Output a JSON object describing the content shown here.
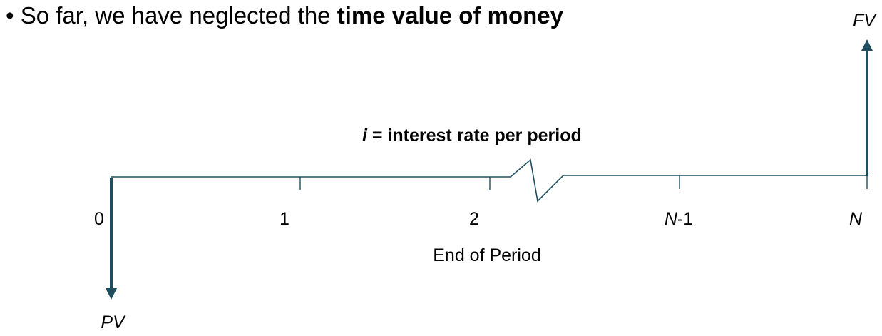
{
  "bullet": {
    "marker": "•",
    "text_plain": "So far, we have neglected the ",
    "text_bold": "time value of money"
  },
  "rate_label": {
    "symbol": "i",
    "text": " = interest rate per period"
  },
  "timeline": {
    "ticks": [
      {
        "base": "0",
        "suffix": ""
      },
      {
        "base": "1",
        "suffix": ""
      },
      {
        "base": "2",
        "suffix": ""
      },
      {
        "base": "N",
        "suffix": "-1"
      },
      {
        "base": "N",
        "suffix": ""
      }
    ],
    "axis_title": "End of Period"
  },
  "cash_flows": {
    "present_value_label": "PV",
    "future_value_label": "FV"
  },
  "colors": {
    "arrow": "#1f4e5f",
    "axis": "#1f4e5f",
    "text": "#000000"
  }
}
